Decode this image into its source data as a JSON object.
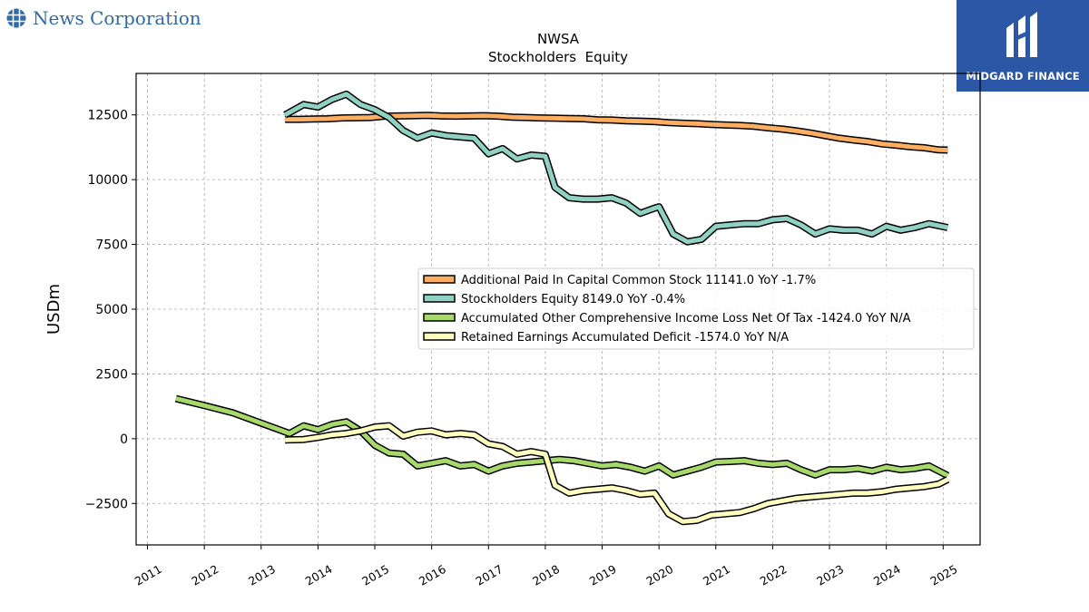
{
  "branding": {
    "left_name": "News Corporation",
    "left_icon": "globe-grid-icon",
    "left_color": "#2f6aa8",
    "right_name": "MIDGARD FINANCE",
    "right_icon": "midgard-logo-icon",
    "right_bg": "#2b57a6"
  },
  "chart_data": {
    "type": "line",
    "title": "NWSA",
    "subtitle": "Stockholders  Equity",
    "xlabel": "",
    "ylabel": "USDm",
    "xlim": [
      2010.8,
      2025.65
    ],
    "ylim": [
      -4100,
      14100
    ],
    "yticks": [
      -2500,
      0,
      2500,
      5000,
      7500,
      10000,
      12500
    ],
    "xticks": [
      2011,
      2012,
      2013,
      2014,
      2015,
      2016,
      2017,
      2018,
      2019,
      2020,
      2021,
      2022,
      2023,
      2024,
      2025
    ],
    "grid": true,
    "legend_position": "center-right",
    "series": [
      {
        "name": "Additional Paid In Capital Common Stock  11141.0 YoY -1.7%",
        "color": "#fdae61",
        "x": [
          2013.42,
          2013.67,
          2013.92,
          2014.17,
          2014.42,
          2014.67,
          2014.92,
          2015.17,
          2015.42,
          2015.67,
          2015.92,
          2016.17,
          2016.42,
          2016.67,
          2016.92,
          2017.17,
          2017.42,
          2017.67,
          2017.92,
          2018.17,
          2018.42,
          2018.67,
          2018.92,
          2019.17,
          2019.42,
          2019.67,
          2019.92,
          2020.17,
          2020.42,
          2020.67,
          2020.92,
          2021.17,
          2021.42,
          2021.67,
          2021.92,
          2022.17,
          2022.42,
          2022.67,
          2022.92,
          2023.17,
          2023.42,
          2023.67,
          2023.92,
          2024.17,
          2024.42,
          2024.67,
          2024.92,
          2025.08
        ],
        "values": [
          12330,
          12330,
          12340,
          12350,
          12380,
          12390,
          12400,
          12450,
          12460,
          12470,
          12480,
          12460,
          12450,
          12460,
          12470,
          12450,
          12410,
          12400,
          12380,
          12370,
          12360,
          12350,
          12310,
          12300,
          12270,
          12260,
          12240,
          12200,
          12180,
          12160,
          12130,
          12110,
          12090,
          12060,
          12000,
          11950,
          11880,
          11800,
          11700,
          11600,
          11530,
          11470,
          11380,
          11330,
          11270,
          11230,
          11150,
          11141
        ]
      },
      {
        "name": "Stockholders Equity  8149.0 YoY -0.4%",
        "color": "#8fd1c2",
        "x": [
          2013.42,
          2013.75,
          2014.0,
          2014.25,
          2014.5,
          2014.75,
          2015.0,
          2015.25,
          2015.5,
          2015.75,
          2016.0,
          2016.25,
          2016.5,
          2016.75,
          2017.0,
          2017.25,
          2017.5,
          2017.75,
          2018.0,
          2018.17,
          2018.42,
          2018.67,
          2018.92,
          2019.17,
          2019.42,
          2019.67,
          2019.92,
          2020.0,
          2020.25,
          2020.5,
          2020.75,
          2021.0,
          2021.25,
          2021.5,
          2021.75,
          2022.0,
          2022.25,
          2022.5,
          2022.75,
          2023.0,
          2023.25,
          2023.5,
          2023.75,
          2024.0,
          2024.25,
          2024.5,
          2024.75,
          2025.08
        ],
        "values": [
          12500,
          12900,
          12800,
          13100,
          13300,
          12900,
          12700,
          12400,
          11900,
          11600,
          11800,
          11700,
          11650,
          11600,
          11000,
          11200,
          10800,
          10950,
          10900,
          9700,
          9300,
          9250,
          9250,
          9300,
          9100,
          8700,
          8900,
          8950,
          7900,
          7600,
          7700,
          8200,
          8250,
          8300,
          8300,
          8450,
          8500,
          8250,
          7900,
          8100,
          8050,
          8050,
          7900,
          8200,
          8050,
          8150,
          8300,
          8149
        ]
      },
      {
        "name": "Accumulated Other Comprehensive Income Loss Net Of Tax  -1424.0 YoY N/A",
        "color": "#a6d96a",
        "x": [
          2011.5,
          2012.0,
          2012.5,
          2013.0,
          2013.5,
          2013.75,
          2014.0,
          2014.25,
          2014.5,
          2014.75,
          2015.0,
          2015.25,
          2015.5,
          2015.75,
          2016.0,
          2016.25,
          2016.5,
          2016.75,
          2017.0,
          2017.25,
          2017.5,
          2017.75,
          2018.0,
          2018.25,
          2018.5,
          2018.75,
          2019.0,
          2019.25,
          2019.5,
          2019.75,
          2020.0,
          2020.25,
          2020.5,
          2020.75,
          2021.0,
          2021.25,
          2021.5,
          2021.75,
          2022.0,
          2022.25,
          2022.5,
          2022.75,
          2023.0,
          2023.25,
          2023.5,
          2023.75,
          2024.0,
          2024.25,
          2024.5,
          2024.75,
          2025.08
        ],
        "values": [
          1550,
          1280,
          1000,
          600,
          200,
          500,
          350,
          550,
          650,
          300,
          -250,
          -550,
          -600,
          -1050,
          -950,
          -850,
          -1050,
          -1000,
          -1250,
          -1050,
          -950,
          -900,
          -850,
          -800,
          -850,
          -950,
          -1050,
          -1000,
          -1100,
          -1250,
          -1050,
          -1400,
          -1250,
          -1100,
          -900,
          -880,
          -850,
          -950,
          -1000,
          -950,
          -1200,
          -1400,
          -1200,
          -1200,
          -1150,
          -1250,
          -1100,
          -1200,
          -1150,
          -1050,
          -1424
        ]
      },
      {
        "name": "Retained Earnings Accumulated Deficit  -1574.0 YoY N/A",
        "color": "#ffffbf",
        "x": [
          2013.42,
          2013.75,
          2014.0,
          2014.25,
          2014.5,
          2014.75,
          2015.0,
          2015.25,
          2015.5,
          2015.75,
          2016.0,
          2016.25,
          2016.5,
          2016.75,
          2017.0,
          2017.25,
          2017.5,
          2017.75,
          2018.0,
          2018.17,
          2018.42,
          2018.67,
          2018.92,
          2019.17,
          2019.42,
          2019.67,
          2019.92,
          2020.17,
          2020.42,
          2020.67,
          2020.92,
          2021.17,
          2021.42,
          2021.67,
          2021.92,
          2022.17,
          2022.42,
          2022.67,
          2022.92,
          2023.17,
          2023.42,
          2023.67,
          2023.92,
          2024.17,
          2024.42,
          2024.67,
          2024.92,
          2025.08
        ],
        "values": [
          -50,
          -30,
          50,
          150,
          200,
          300,
          450,
          500,
          100,
          250,
          300,
          150,
          200,
          150,
          -200,
          -300,
          -600,
          -500,
          -600,
          -1800,
          -2100,
          -2000,
          -1950,
          -1900,
          -2000,
          -2150,
          -2100,
          -2900,
          -3200,
          -3150,
          -2950,
          -2900,
          -2850,
          -2700,
          -2500,
          -2400,
          -2300,
          -2250,
          -2200,
          -2150,
          -2100,
          -2100,
          -2050,
          -1950,
          -1900,
          -1850,
          -1750,
          -1574
        ]
      }
    ]
  }
}
